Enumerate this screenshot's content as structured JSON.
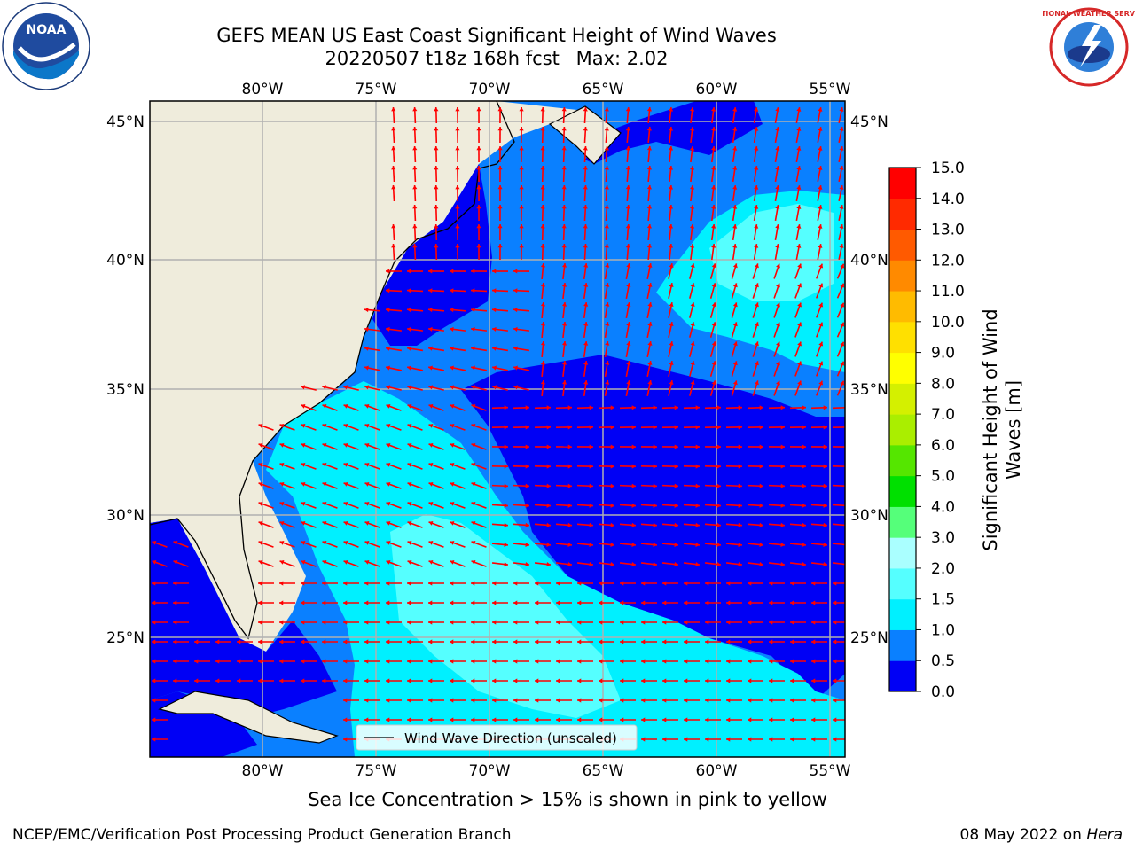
{
  "title": {
    "line1": "GEFS MEAN US East Coast Significant Height of Wind Waves",
    "date_cycle": "20220507 t18z 168h fcst",
    "max": "Max: 2.02"
  },
  "logos": {
    "left": "noaa-logo",
    "left_text": "NOAA",
    "right": "nws-logo",
    "right_text": "NATIONAL WEATHER SERVICE"
  },
  "map": {
    "lon_labels": [
      "80°W",
      "75°W",
      "70°W",
      "65°W",
      "60°W",
      "55°W"
    ],
    "lat_labels": [
      "45°N",
      "40°N",
      "35°N",
      "30°N",
      "25°N"
    ],
    "legend_label": "Wind Wave Direction (unscaled)",
    "arrow_color": "#ff0000",
    "land_color": "#efecdc"
  },
  "colorbar": {
    "label_line1": "Significant Height of Wind",
    "label_line2": "Waves [m]",
    "ticks": [
      "0.0",
      "0.5",
      "1.0",
      "1.5",
      "2.0",
      "3.0",
      "4.0",
      "5.0",
      "6.0",
      "7.0",
      "8.0",
      "9.0",
      "10.0",
      "11.0",
      "12.0",
      "13.0",
      "14.0",
      "15.0"
    ],
    "colors": [
      "#0000f5",
      "#0a80ff",
      "#00f0ff",
      "#55ffff",
      "#aaffff",
      "#55ff7a",
      "#00e000",
      "#55e600",
      "#aaee00",
      "#d4f000",
      "#ffff00",
      "#ffe000",
      "#ffbb00",
      "#ff8a00",
      "#ff5a00",
      "#ff2a00",
      "#ff0000"
    ]
  },
  "note": "Sea Ice Concentration > 15% is shown in pink to yellow",
  "footer": {
    "left": "NCEP/EMC/Verification Post Processing Product Generation Branch",
    "date": "08 May 2022 on",
    "machine": "Hera"
  }
}
